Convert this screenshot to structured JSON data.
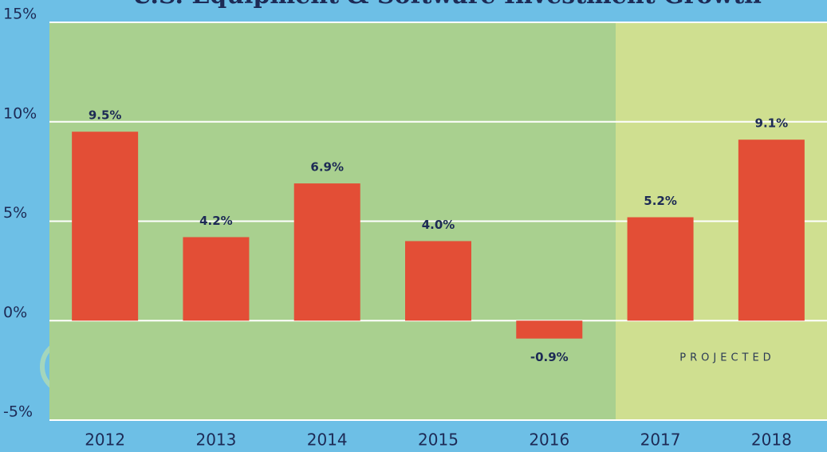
{
  "chart_data": {
    "type": "bar",
    "title": "U.S. Equipment & Software Investment Growth",
    "categories": [
      "2012",
      "2013",
      "2014",
      "2015",
      "2016",
      "2017",
      "2018"
    ],
    "values": [
      9.5,
      4.2,
      6.9,
      4.0,
      -0.9,
      5.2,
      9.1
    ],
    "value_labels": [
      "9.5%",
      "4.2%",
      "6.9%",
      "4.0%",
      "-0.9%",
      "5.2%",
      "9.1%"
    ],
    "color": "#e34e36",
    "ylim": [
      -5,
      15
    ],
    "yticks": [
      {
        "value": -5,
        "label": "-5%"
      },
      {
        "value": 0,
        "label": "0%"
      },
      {
        "value": 5,
        "label": "5%"
      },
      {
        "value": 10,
        "label": "10%"
      },
      {
        "value": 15,
        "label": "15%"
      }
    ],
    "grid": true,
    "annotation": "PROJECTED"
  }
}
